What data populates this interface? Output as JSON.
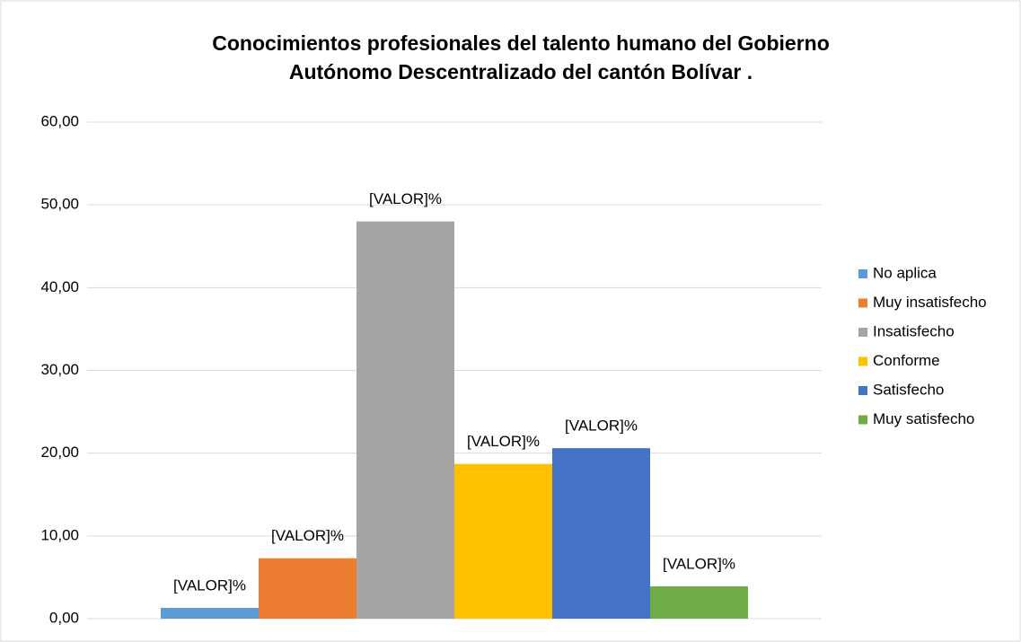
{
  "chart_data": {
    "type": "bar",
    "title": "Conocimientos profesionales del talento humano del Gobierno",
    "subtitle": "Autónomo Descentralizado del cantón Bolívar .",
    "categories": [
      null
    ],
    "series": [
      {
        "name": "No aplica",
        "color": "#5b9bd5",
        "values": [
          1.3
        ],
        "value_labels": [
          "[VALOR]%"
        ]
      },
      {
        "name": "Muy insatisfecho",
        "color": "#ed7d31",
        "values": [
          7.3
        ],
        "value_labels": [
          "[VALOR]%"
        ]
      },
      {
        "name": "Insatisfecho",
        "color": "#a5a5a5",
        "values": [
          48.0
        ],
        "value_labels": [
          "[VALOR]%"
        ]
      },
      {
        "name": "Conforme",
        "color": "#ffc000",
        "values": [
          18.7
        ],
        "value_labels": [
          "[VALOR]%"
        ]
      },
      {
        "name": "Satisfecho",
        "color": "#4472c4",
        "values": [
          20.6
        ],
        "value_labels": [
          "[VALOR]%"
        ]
      },
      {
        "name": "Muy satisfecho",
        "color": "#70ad47",
        "values": [
          3.9
        ],
        "value_labels": [
          "[VALOR]%"
        ]
      }
    ],
    "ylim": [
      0,
      60
    ],
    "yticks": [
      {
        "value": 0,
        "label": "0,00"
      },
      {
        "value": 10,
        "label": "10,00"
      },
      {
        "value": 20,
        "label": "20,00"
      },
      {
        "value": 30,
        "label": "30,00"
      },
      {
        "value": 40,
        "label": "40,00"
      },
      {
        "value": 50,
        "label": "50,00"
      },
      {
        "value": 60,
        "label": "60,00"
      }
    ],
    "grid": true,
    "legend": "right"
  }
}
